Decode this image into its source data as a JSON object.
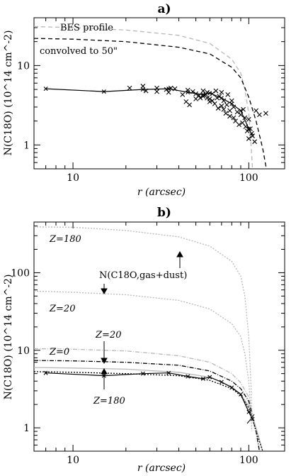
{
  "chart_data": [
    {
      "type": "line",
      "panel_label": "a)",
      "xlabel": "r  (arcsec)",
      "ylabel": "N(C18O)  (10^14 cm^-2)",
      "xscale": "log",
      "yscale": "log",
      "xlim": [
        6,
        160
      ],
      "ylim": [
        0.5,
        40
      ],
      "x_ticks": [
        {
          "value": 10,
          "label": "10"
        },
        {
          "value": 100,
          "label": "100"
        }
      ],
      "y_ticks": [
        {
          "value": 1,
          "label": "1"
        },
        {
          "value": 10,
          "label": "10"
        }
      ],
      "annotations": [
        "BES profile",
        "convolved to 50\""
      ],
      "series": [
        {
          "name": "BES profile",
          "style": "dashed",
          "color": "#b8b8b8",
          "x": [
            6,
            10,
            20,
            40,
            60,
            80,
            90,
            95,
            100,
            103,
            105
          ],
          "y": [
            31,
            30,
            28,
            24,
            19,
            12,
            8,
            5,
            2.5,
            1,
            0.5
          ]
        },
        {
          "name": "convolved to 50\"",
          "style": "dashed",
          "color": "#000000",
          "x": [
            6,
            10,
            20,
            40,
            60,
            80,
            90,
            100,
            110,
            120,
            126
          ],
          "y": [
            22,
            21.5,
            20,
            17,
            14,
            9.5,
            7,
            4,
            2,
            0.9,
            0.5
          ]
        },
        {
          "name": "",
          "style": "solid-markers",
          "color": "#000000",
          "x": [
            7,
            15,
            25,
            35,
            45,
            55,
            60,
            70,
            80,
            90,
            100,
            105
          ],
          "y": [
            5.1,
            4.7,
            5.0,
            5.1,
            4.6,
            4.3,
            4.5,
            3.9,
            3.3,
            2.7,
            1.6,
            1.3
          ]
        },
        {
          "name": "",
          "style": "crosses",
          "color": "#000000",
          "x": [
            21,
            25,
            26,
            30,
            30,
            34,
            35,
            36,
            38,
            42,
            44,
            45,
            46,
            48,
            50,
            50,
            52,
            53,
            55,
            55,
            57,
            58,
            58,
            60,
            60,
            62,
            62,
            64,
            65,
            66,
            67,
            68,
            70,
            70,
            72,
            72,
            74,
            75,
            76,
            78,
            78,
            80,
            82,
            82,
            84,
            86,
            88,
            90,
            92,
            93,
            95,
            96,
            98,
            100,
            100,
            102,
            104,
            105,
            108,
            110,
            115,
            125
          ],
          "y": [
            5.2,
            5.5,
            4.8,
            5.2,
            4.7,
            5.0,
            4.6,
            5.2,
            5.1,
            4.3,
            3.5,
            4.9,
            3.2,
            4.7,
            3.8,
            4.4,
            4.2,
            3.9,
            4.8,
            4.1,
            4.3,
            3.9,
            4.6,
            3.5,
            3.8,
            4.4,
            3.6,
            3.3,
            4.8,
            3.9,
            2.9,
            4.1,
            3.1,
            4.6,
            2.8,
            3.6,
            2.5,
            3.2,
            4.3,
            2.3,
            2.7,
            3.6,
            2.2,
            3.0,
            2.0,
            2.6,
            1.8,
            2.4,
            1.9,
            2.8,
            2.2,
            1.7,
            1.5,
            2.1,
            1.2,
            1.6,
            1.4,
            1.3,
            1.1,
            2.7,
            2.4,
            2.5
          ]
        }
      ]
    },
    {
      "type": "line",
      "panel_label": "b)",
      "xlabel": "r  (arcsec)",
      "ylabel": "N(C18O)  (10^14 cm^-2)",
      "xscale": "log",
      "yscale": "log",
      "xlim": [
        6,
        160
      ],
      "ylim": [
        0.5,
        450
      ],
      "x_ticks": [
        {
          "value": 10,
          "label": "10"
        },
        {
          "value": 100,
          "label": "100"
        }
      ],
      "y_ticks": [
        {
          "value": 1,
          "label": "1"
        },
        {
          "value": 10,
          "label": "10"
        },
        {
          "value": 100,
          "label": "100"
        }
      ],
      "annotations": [
        "Z=180",
        "Z=20",
        "Z=0",
        "Z=20",
        "Z=180",
        "N(C18O,gas+dust)"
      ],
      "series": [
        {
          "name": "",
          "style": "dotted",
          "color": "#b8b8b8",
          "x": [
            6,
            10,
            20,
            40,
            60,
            80,
            90,
            95,
            100,
            103,
            104
          ],
          "y": [
            390,
            385,
            350,
            290,
            220,
            140,
            90,
            50,
            15,
            3.5,
            1.6
          ]
        },
        {
          "name": "",
          "style": "dotted",
          "color": "#b8b8b8",
          "x": [
            6,
            10,
            20,
            40,
            60,
            80,
            90,
            95,
            100,
            103,
            104
          ],
          "y": [
            58,
            56,
            52,
            44,
            34,
            22,
            15,
            9,
            4,
            1.5,
            0.9
          ]
        },
        {
          "name": "",
          "style": "dash-dot",
          "color": "#b8b8b8",
          "x": [
            6,
            10,
            20,
            40,
            60,
            80,
            90,
            100,
            105,
            110,
            115
          ],
          "y": [
            10.5,
            10.3,
            9.8,
            8.5,
            7,
            5,
            3.8,
            2.5,
            1.5,
            0.9,
            0.5
          ]
        },
        {
          "name": "",
          "style": "dash-dot",
          "color": "#000000",
          "x": [
            6,
            10,
            20,
            40,
            60,
            80,
            90,
            100,
            105,
            110,
            115
          ],
          "y": [
            7.4,
            7.3,
            7.0,
            6.4,
            5.4,
            4.0,
            3.2,
            2.2,
            1.4,
            0.9,
            0.5
          ]
        },
        {
          "name": "",
          "style": "solid",
          "color": "#b8b8b8",
          "x": [
            6,
            10,
            20,
            40,
            60,
            80,
            90,
            100,
            105,
            110,
            120
          ],
          "y": [
            6.0,
            5.9,
            5.7,
            5.2,
            4.5,
            3.4,
            2.7,
            1.9,
            1.4,
            1.0,
            0.5
          ]
        },
        {
          "name": "",
          "style": "dotted",
          "color": "#000000",
          "x": [
            6,
            10,
            20,
            40,
            60,
            80,
            90,
            100,
            105,
            110,
            120
          ],
          "y": [
            5.3,
            5.2,
            5.0,
            4.7,
            4.1,
            3.2,
            2.6,
            1.8,
            1.3,
            0.9,
            0.5
          ]
        },
        {
          "name": "",
          "style": "solid-markers",
          "color": "#000000",
          "x": [
            7,
            15,
            25,
            35,
            45,
            55,
            60,
            70,
            80,
            90,
            100,
            105
          ],
          "y": [
            5.1,
            4.7,
            5.0,
            5.1,
            4.6,
            4.3,
            4.5,
            3.9,
            3.3,
            2.7,
            1.6,
            1.3
          ]
        }
      ]
    }
  ]
}
